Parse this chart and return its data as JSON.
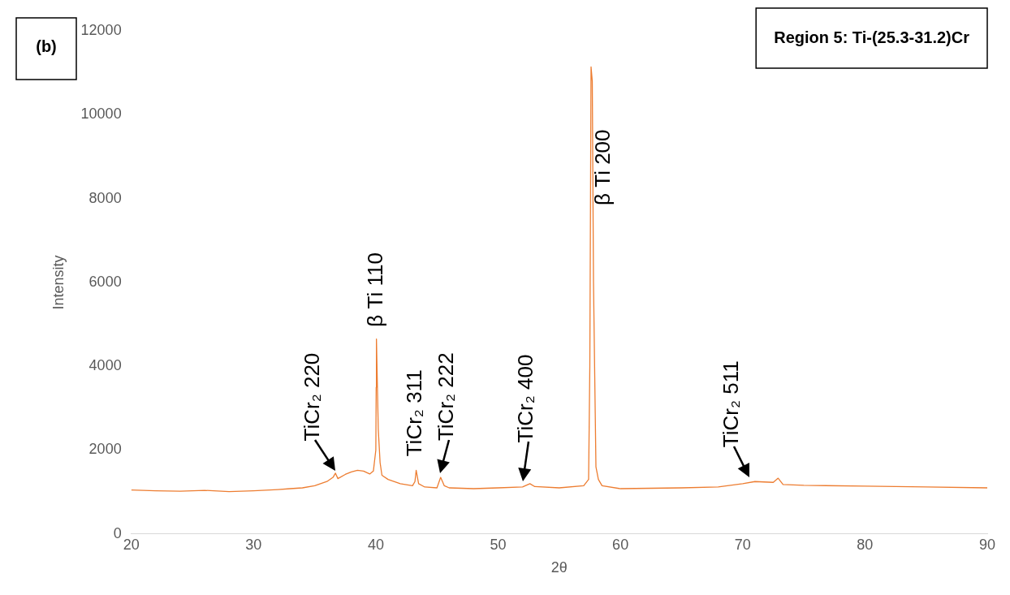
{
  "chart_data": {
    "type": "line",
    "title": "Region 5: Ti-(25.3-31.2)Cr",
    "xlabel": "2θ",
    "ylabel": "Intensity",
    "x": [
      20,
      22,
      24,
      26,
      28,
      30,
      32,
      33,
      34,
      35,
      36,
      36.5,
      36.7,
      36.9,
      37.5,
      38,
      38.5,
      39,
      39.5,
      39.8,
      40,
      40.03,
      40.05,
      40.2,
      40.35,
      40.5,
      41,
      42,
      43,
      43.2,
      43.3,
      43.5,
      44,
      45,
      45.3,
      45.6,
      46,
      48,
      50,
      52,
      52.6,
      53,
      55,
      57,
      57.4,
      57.5,
      57.6,
      57.7,
      57.8,
      58,
      58.2,
      58.5,
      60,
      65,
      68,
      70,
      71,
      72.5,
      72.9,
      73.3,
      75,
      80,
      85,
      90
    ],
    "series": [
      {
        "color": "#ed7d31",
        "values": [
          1050,
          1030,
          1020,
          1040,
          1010,
          1030,
          1060,
          1080,
          1100,
          1150,
          1250,
          1350,
          1450,
          1320,
          1420,
          1480,
          1520,
          1500,
          1430,
          1500,
          2000,
          3500,
          4650,
          2500,
          1700,
          1400,
          1300,
          1200,
          1150,
          1250,
          1520,
          1200,
          1120,
          1100,
          1350,
          1150,
          1100,
          1080,
          1100,
          1120,
          1200,
          1130,
          1100,
          1150,
          1300,
          4000,
          11140,
          10800,
          6000,
          1600,
          1300,
          1150,
          1080,
          1100,
          1120,
          1200,
          1250,
          1230,
          1330,
          1180,
          1160,
          1140,
          1120,
          1100
        ]
      }
    ],
    "xlim": [
      20,
      90
    ],
    "xticks": [
      20,
      30,
      40,
      50,
      60,
      70,
      80,
      90
    ],
    "ylim": [
      0,
      12000
    ],
    "yticks": [
      0,
      2000,
      4000,
      6000,
      8000,
      10000,
      12000
    ],
    "grid": false,
    "legend": false,
    "marker": "none",
    "line_style": "solid",
    "annotations": [
      "(b)",
      {
        "text": "TiCr₂ 220",
        "x": 36.6,
        "y": 1400
      },
      {
        "text": "β Ti 110",
        "x": 40.05,
        "y": 4650
      },
      {
        "text": "TiCr₂ 311",
        "x": 43.3,
        "y": 1520
      },
      {
        "text": "TiCr₂ 222",
        "x": 45.3,
        "y": 1350
      },
      {
        "text": "TiCr₂ 400",
        "x": 52.1,
        "y": 1150
      },
      {
        "text": "β Ti 200",
        "x": 57.62,
        "y": 9000
      },
      {
        "text": "TiCr₂ 511",
        "x": 70.5,
        "y": 1250
      }
    ]
  }
}
